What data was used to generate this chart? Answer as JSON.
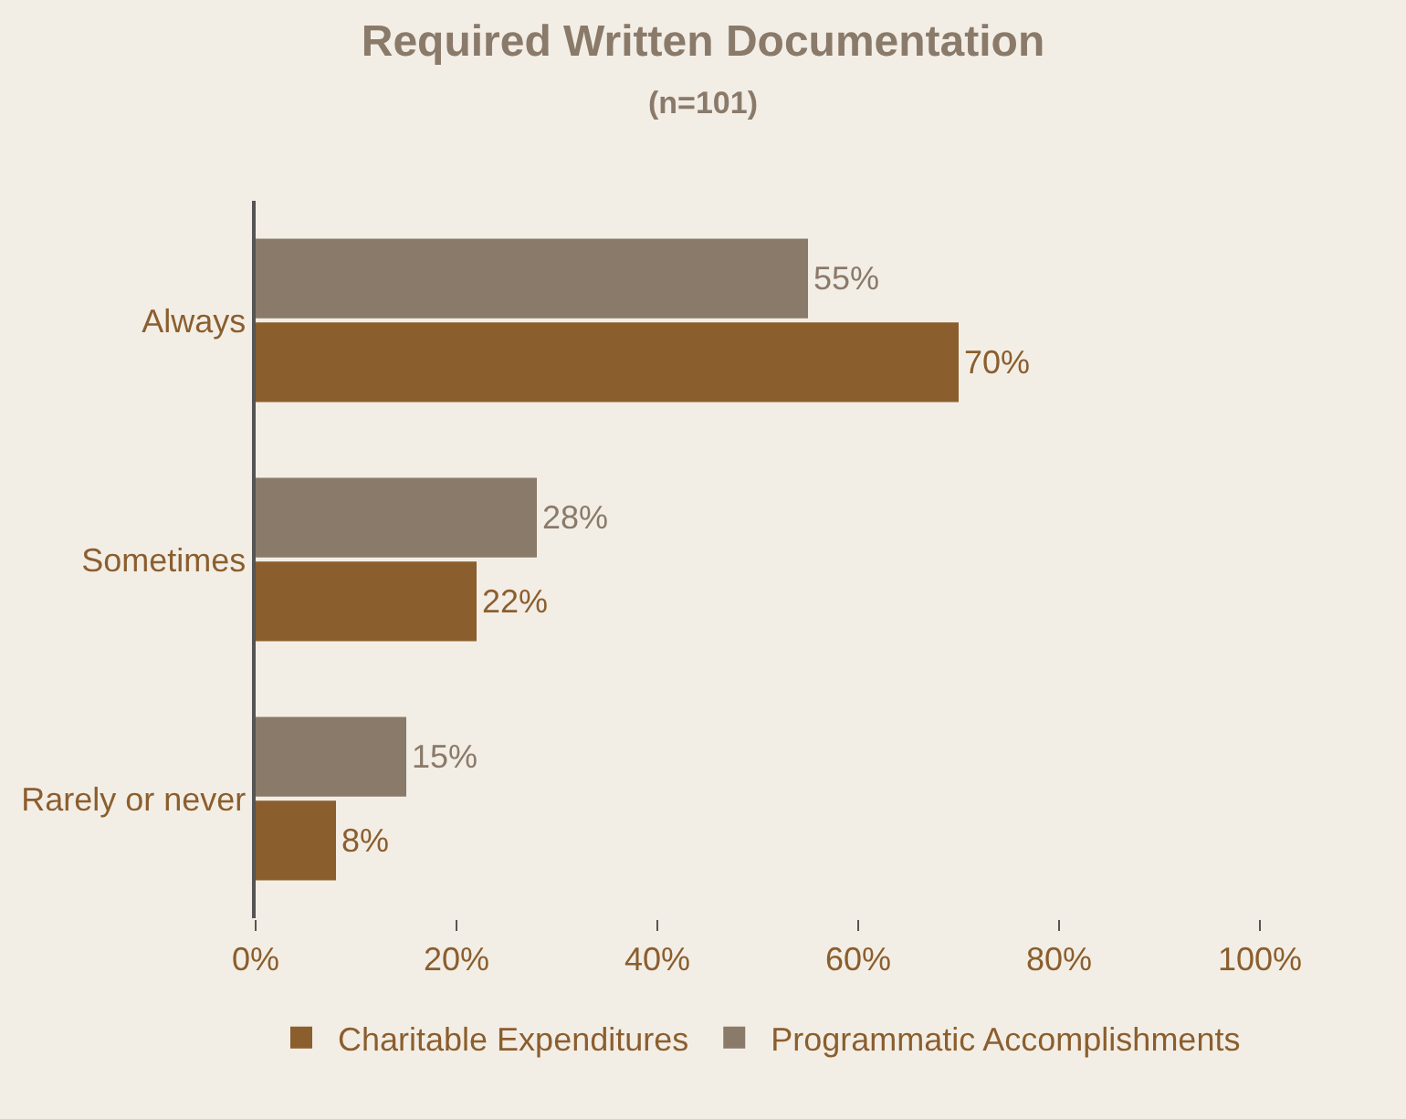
{
  "chart_data": {
    "type": "bar",
    "orientation": "horizontal",
    "title": "Required Written Documentation",
    "subtitle": "(n=101)",
    "categories": [
      "Always",
      "Sometimes",
      "Rarely or never"
    ],
    "series": [
      {
        "name": "Programmatic Accomplishments",
        "color": "#8a7a6a",
        "values": [
          55,
          28,
          15
        ],
        "value_labels": [
          "55%",
          "28%",
          "15%"
        ]
      },
      {
        "name": "Charitable Expenditures",
        "color": "#8b5e2e",
        "values": [
          70,
          22,
          8
        ],
        "value_labels": [
          "70%",
          "22%",
          "8%"
        ]
      }
    ],
    "xlim": [
      0,
      100
    ],
    "xticks": [
      {
        "value": 0,
        "label": "0%"
      },
      {
        "value": 20,
        "label": "20%"
      },
      {
        "value": 40,
        "label": "40%"
      },
      {
        "value": 60,
        "label": "60%"
      },
      {
        "value": 80,
        "label": "80%"
      },
      {
        "value": 100,
        "label": "100%"
      }
    ],
    "grid": false,
    "legend": "bottom"
  }
}
